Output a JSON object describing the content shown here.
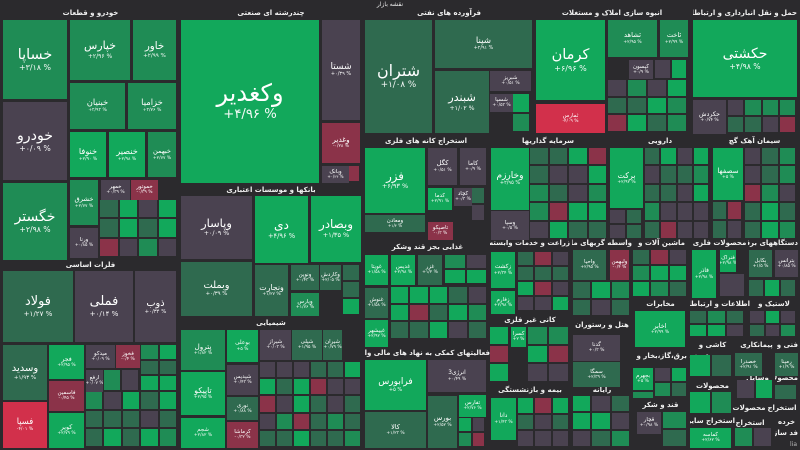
{
  "title": "نقشه بازار",
  "logo_text": "lia",
  "tone_colors": {
    "g3": "#12a85b",
    "g2": "#1f8c55",
    "g1": "#2f6a4f",
    "n": "#4a4250",
    "r1": "#8b3349",
    "r2": "#d2304b"
  },
  "sectors": [
    {
      "title": "خودرو و قطعات"
    },
    {
      "title": "چندرشته ای صنعتی"
    },
    {
      "title": "فرآورده های نفتی"
    },
    {
      "title": "انبوه سازی املاک و مستغلات"
    },
    {
      "title": "حمل و نقل انبارداری و ارتباطات"
    },
    {
      "title": "بانکها و موسسات اعتباری"
    },
    {
      "title": "فلزات اساسی"
    },
    {
      "title": "شیمیایی"
    },
    {
      "title": "استخراج کانه های فلزی"
    },
    {
      "title": "سرمایه گذاریها"
    },
    {
      "title": "دارویی"
    },
    {
      "title": "سیمان آهک گچ"
    },
    {
      "title": "غذایی بجز قند وشکر"
    },
    {
      "title": "زراعت و خدمات وابسته"
    },
    {
      "title": "واسطه گریهای مالی و"
    },
    {
      "title": "ماشین آلات و"
    },
    {
      "title": "محصولات فلزی"
    },
    {
      "title": "دستگاههای برقی"
    },
    {
      "title": "کانی غیر فلزی"
    },
    {
      "title": "هتل و رستوران"
    },
    {
      "title": "مخابرات"
    },
    {
      "title": "اطلاعات و ارتباطات"
    },
    {
      "title": "لاستیک و"
    },
    {
      "title": "فعالیتهای کمکی به نهاد های مالی واسط"
    },
    {
      "title": "بیمه و بازنشستگی"
    },
    {
      "title": "رایانه"
    },
    {
      "title": "عرضه برق،گاز،بخار و"
    },
    {
      "title": "قند و شکر"
    },
    {
      "title": "استخراج سایر"
    },
    {
      "title": "کاشی و"
    },
    {
      "title": "پیمانکاری"
    },
    {
      "title": "فنی و"
    },
    {
      "title": "محصولات"
    },
    {
      "title": "وسایل"
    },
    {
      "title": "محصولات"
    },
    {
      "title": "استخراج"
    },
    {
      "title": "محصولات"
    },
    {
      "title": "خرده"
    },
    {
      "title": "فد ساز"
    },
    {
      "title": "استخراج"
    }
  ],
  "tiles": [
    {
      "symbol": "خساپا",
      "change": "+۳/۱۸ %",
      "tone": "g2"
    },
    {
      "symbol": "خودرو",
      "change": "+۰/۰۹ %",
      "tone": "n"
    },
    {
      "symbol": "خگستر",
      "change": "+۲/۹۸ %",
      "tone": "g2"
    },
    {
      "symbol": "خپارس",
      "change": "+۲/۹۶ %",
      "tone": "g2"
    },
    {
      "symbol": "خاور",
      "change": "+۲/۹۹ %",
      "tone": "g2"
    },
    {
      "symbol": "خبنیان",
      "change": "+۲/۹۲ %",
      "tone": "g2"
    },
    {
      "symbol": "خزامیا",
      "change": "+۲/۷۶ %",
      "tone": "g2"
    },
    {
      "symbol": "خنوفا",
      "change": "+۲/۹۰ %",
      "tone": "g3"
    },
    {
      "symbol": "خنصیر",
      "change": "+۲/۹۸ %",
      "tone": "g3"
    },
    {
      "symbol": "خبهمن",
      "change": "+۲/۷۷ %",
      "tone": "g2"
    },
    {
      "symbol": "خشرق",
      "change": "+۲/۷۷ %",
      "tone": "g2"
    },
    {
      "symbol": "خمهر",
      "change": "+۰/۳۹ %",
      "tone": "n"
    },
    {
      "symbol": "خموتور",
      "change": "-۰/۳۹ %",
      "tone": "r1"
    },
    {
      "symbol": "ورنا",
      "change": "+۰/۸۵ %",
      "tone": "n"
    },
    {
      "symbol": "وکغدیر",
      "change": "+۴/۹۶ %",
      "tone": "g3"
    },
    {
      "symbol": "شستا",
      "change": "+۰/۳۹ %",
      "tone": "n"
    },
    {
      "symbol": "وغدیر",
      "change": "-۰/۲۸ %",
      "tone": "r1"
    },
    {
      "symbol": "وبانک",
      "change": "+۰/۲۴ %",
      "tone": "n"
    },
    {
      "symbol": "وپاسار",
      "change": "+۰/۰۹ %",
      "tone": "n"
    },
    {
      "symbol": "دی",
      "change": "+۴/۹۶ %",
      "tone": "g3"
    },
    {
      "symbol": "وبصادر",
      "change": "+۱/۳۵ %",
      "tone": "g3"
    },
    {
      "symbol": "وبملت",
      "change": "+۰/۳۹ %",
      "tone": "g1"
    },
    {
      "symbol": "ونجارت",
      "change": "+۱/۲۷ %",
      "tone": "g1"
    },
    {
      "symbol": "ونوین",
      "change": "+۰/۴۳ %",
      "tone": "g1"
    },
    {
      "symbol": "وکاردش",
      "change": "+۲/۰۵ %",
      "tone": "g1"
    },
    {
      "symbol": "وپارس",
      "change": "+۱/۷۶ %",
      "tone": "g2"
    },
    {
      "symbol": "فولاد",
      "change": "+۱/۲۷ %",
      "tone": "g1"
    },
    {
      "symbol": "فملی",
      "change": "+۰/۱۴ %",
      "tone": "n"
    },
    {
      "symbol": "ذوب",
      "change": "+۰/۳۴ %",
      "tone": "n"
    },
    {
      "symbol": "وسدید",
      "change": "+۱/۹۳ %",
      "tone": "g1"
    },
    {
      "symbol": "فجر",
      "change": "+۲/۹۵ %",
      "tone": "g3"
    },
    {
      "symbol": "میدکو",
      "change": "+۰/۰۹ %",
      "tone": "n"
    },
    {
      "symbol": "فخوز",
      "change": "-۰/۴ %",
      "tone": "r1"
    },
    {
      "symbol": "ارفع",
      "change": "+۰/۰۷ %",
      "tone": "n"
    },
    {
      "symbol": "فاسمین",
      "change": "-۰/۴۵ %",
      "tone": "r1"
    },
    {
      "symbol": "فسپا",
      "change": "-۴/۰۱ %",
      "tone": "r2"
    },
    {
      "symbol": "کویر",
      "change": "+۲/۷۹ %",
      "tone": "g3"
    },
    {
      "symbol": "پترول",
      "change": "+۱/۸۲ %",
      "tone": "g2"
    },
    {
      "symbol": "بوعلی",
      "change": "+۵ %",
      "tone": "g3"
    },
    {
      "symbol": "شیراز",
      "change": "+۰/۰۳ %",
      "tone": "n"
    },
    {
      "symbol": "شپلی",
      "change": "+۱/۹۵ %",
      "tone": "g1"
    },
    {
      "symbol": "شیران",
      "change": "+۰/۷۹ %",
      "tone": "g1"
    },
    {
      "symbol": "تاپیکو",
      "change": "+۲/۹۵ %",
      "tone": "g3"
    },
    {
      "symbol": "شپدیس",
      "change": "+۰/۴۳ %",
      "tone": "n"
    },
    {
      "symbol": "نوری",
      "change": "+۰/۸۸ %",
      "tone": "g1"
    },
    {
      "symbol": "شجم",
      "change": "+۲/۸۲ %",
      "tone": "g3"
    },
    {
      "symbol": "کرماشا",
      "change": "-۰/۳۲ %",
      "tone": "r1"
    },
    {
      "symbol": "شتران",
      "change": "+۱/۰۸ %",
      "tone": "g1"
    },
    {
      "symbol": "شپنا",
      "change": "+۲/۹۱ %",
      "tone": "g1"
    },
    {
      "symbol": "شبندر",
      "change": "+۱/۰۲ %",
      "tone": "g1"
    },
    {
      "symbol": "شبریز",
      "change": "+۰/۵۱ %",
      "tone": "n"
    },
    {
      "symbol": "شسپا",
      "change": "+۰/۵۳ %",
      "tone": "n"
    },
    {
      "symbol": "کرمان",
      "change": "+۶/۹۶ %",
      "tone": "g3"
    },
    {
      "symbol": "ثمارس",
      "change": "-۴/۰۹ %",
      "tone": "r2"
    },
    {
      "symbol": "ثشاهد",
      "change": "+۲/۹۵ %",
      "tone": "g2"
    },
    {
      "symbol": "ثاخت",
      "change": "+۲/۹۹ %",
      "tone": "g2"
    },
    {
      "symbol": "کیسون",
      "change": "+۰/۹ %",
      "tone": "n"
    },
    {
      "symbol": "حکشتی",
      "change": "+۴/۹۸ %",
      "tone": "g3"
    },
    {
      "symbol": "حکردش",
      "change": "+۰/۷۴ %",
      "tone": "n"
    },
    {
      "symbol": "فزر",
      "change": "+۶/۹۳ %",
      "tone": "g3"
    },
    {
      "symbol": "کگل",
      "change": "+۰/۵۱ %",
      "tone": "n"
    },
    {
      "symbol": "کاما",
      "change": "+۰/۹ %",
      "tone": "n"
    },
    {
      "symbol": "کدما",
      "change": "+۲/۹۱ %",
      "tone": "g3"
    },
    {
      "symbol": "کچاد",
      "change": "+۰/۳ %",
      "tone": "n"
    },
    {
      "symbol": "ومعادن",
      "change": "+۱/۴ %",
      "tone": "g1"
    },
    {
      "symbol": "تاصیکو",
      "change": "-۰/۳ %",
      "tone": "r1"
    },
    {
      "symbol": "وخارزم",
      "change": "+۲/۹۵ %",
      "tone": "g3"
    },
    {
      "symbol": "وسپا",
      "change": "+۰/۵ %",
      "tone": "n"
    },
    {
      "symbol": "برکت",
      "change": "+۲/۹۲ %",
      "tone": "g3"
    },
    {
      "symbol": "سصفها",
      "change": "+۵ %",
      "tone": "g3"
    },
    {
      "symbol": "غویتا",
      "change": "+۱/۵۸ %",
      "tone": "g3"
    },
    {
      "symbol": "غنوش",
      "change": "+۱/۵۸ %",
      "tone": "g1"
    },
    {
      "symbol": "غپیشهر",
      "change": "+۲/۹۲ %",
      "tone": "g3"
    },
    {
      "symbol": "غدیس",
      "change": "+۲/۹۸ %",
      "tone": "g3"
    },
    {
      "symbol": "غزر",
      "change": "+۱/۲ %",
      "tone": "g1"
    },
    {
      "symbol": "زکشت",
      "change": "+۲/۳۴ %",
      "tone": "g3"
    },
    {
      "symbol": "زفارم",
      "change": "+۲/۹۸ %",
      "tone": "g3"
    },
    {
      "symbol": "واحیا",
      "change": "+۲/۹۵ %",
      "tone": "g1"
    },
    {
      "symbol": "ولبهمن",
      "change": "-۰/۴ %",
      "tone": "r1"
    },
    {
      "symbol": "فاذر",
      "change": "+۲/۹۸ %",
      "tone": "g3"
    },
    {
      "symbol": "فنراک",
      "change": "+۲/۹۸ %",
      "tone": "g3"
    },
    {
      "symbol": "بکابل",
      "change": "+۱/۵ %",
      "tone": "g1"
    },
    {
      "symbol": "بترانس",
      "change": "+۰/۸۵ %",
      "tone": "n"
    },
    {
      "symbol": "کسرا",
      "change": "+۲ %",
      "tone": "g3"
    },
    {
      "symbol": "گدنا",
      "change": "+۰/۳ %",
      "tone": "n"
    },
    {
      "symbol": "سمگا",
      "change": "+۲/۳۹ %",
      "tone": "g1"
    },
    {
      "symbol": "اخابر",
      "change": "+۲/۹۹ %",
      "tone": "g3"
    },
    {
      "symbol": "فرابورس",
      "change": "+۵ %",
      "tone": "g3"
    },
    {
      "symbol": "انرژی3",
      "change": "+۰/۴۹ %",
      "tone": "n"
    },
    {
      "symbol": "بورس",
      "change": "+۲/۵۲ %",
      "tone": "g1"
    },
    {
      "symbol": "تفارس",
      "change": "+۲/۷۶ %",
      "tone": "g3"
    },
    {
      "symbol": "کالا",
      "change": "+۱/۲۳ %",
      "tone": "g1"
    },
    {
      "symbol": "دانا",
      "change": "+۱/۴۳ %",
      "tone": "g3"
    },
    {
      "symbol": "بجهرم",
      "change": "+۵ %",
      "tone": "g3"
    },
    {
      "symbol": "قچار",
      "change": "+۰/۹۸ %",
      "tone": "n"
    },
    {
      "symbol": "کماسه",
      "change": "+۲/۶۲ %",
      "tone": "g3"
    },
    {
      "symbol": "خصدرا",
      "change": "+۲/۹۱ %",
      "tone": "g1"
    },
    {
      "symbol": "رمپنا",
      "change": "+۱/۹ %",
      "tone": "g1"
    }
  ]
}
